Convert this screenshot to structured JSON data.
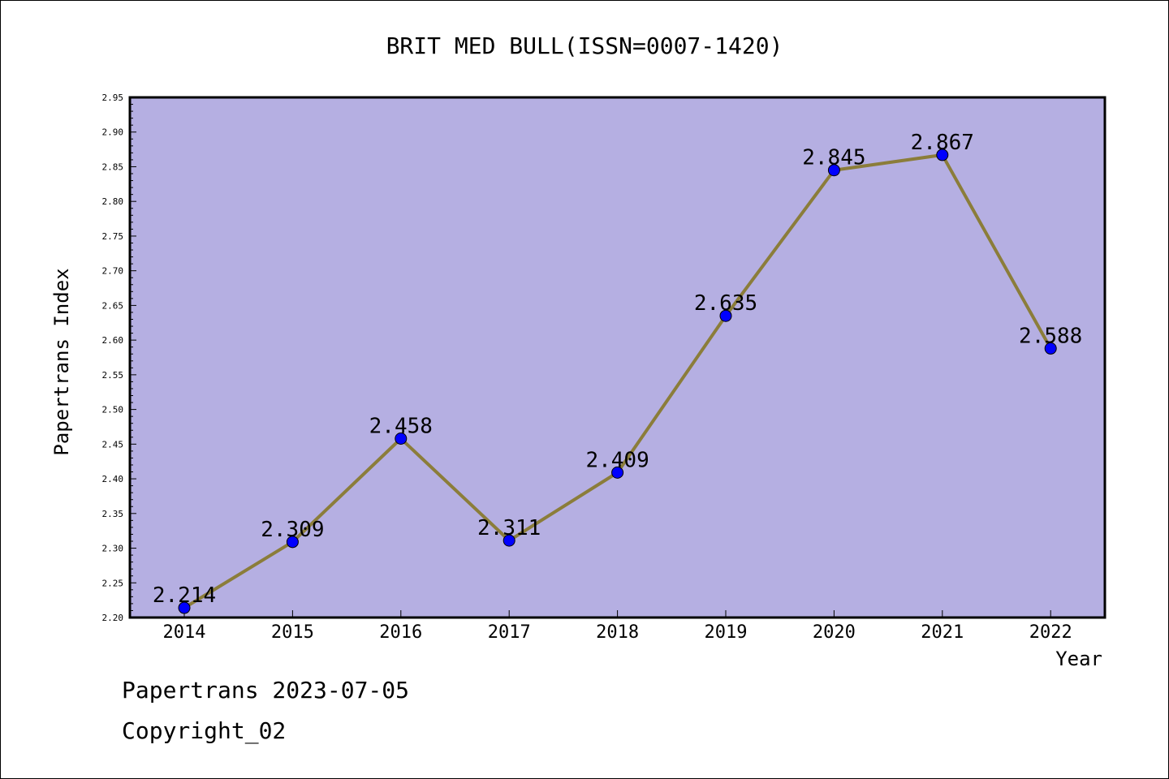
{
  "footer": {
    "line1": "Papertrans 2023-07-05",
    "line2": "Copyright_02"
  },
  "colors": {
    "plot_background": "#b5afe2",
    "line": "#8b7d3a",
    "marker": "#0000ff",
    "frame": "#000000"
  },
  "chart_data": {
    "type": "line",
    "title": "BRIT MED BULL(ISSN=0007-1420)",
    "xlabel": "Year",
    "ylabel": "Papertrans Index",
    "x": [
      "2014",
      "2015",
      "2016",
      "2017",
      "2018",
      "2019",
      "2020",
      "2021",
      "2022"
    ],
    "series": [
      {
        "values": [
          2.214,
          2.309,
          2.458,
          2.311,
          2.409,
          2.635,
          2.845,
          2.867,
          2.588
        ],
        "labels": [
          "2.214",
          "2.309",
          "2.458",
          "2.311",
          "2.409",
          "2.635",
          "2.845",
          "2.867",
          "2.588"
        ]
      }
    ],
    "ylim": [
      2.2,
      2.95
    ],
    "yticks": [
      "2.20",
      "2.25",
      "2.30",
      "2.35",
      "2.40",
      "2.45",
      "2.50",
      "2.55",
      "2.60",
      "2.65",
      "2.70",
      "2.75",
      "2.80",
      "2.85",
      "2.90",
      "2.95"
    ],
    "grid": false,
    "legend": "none"
  }
}
